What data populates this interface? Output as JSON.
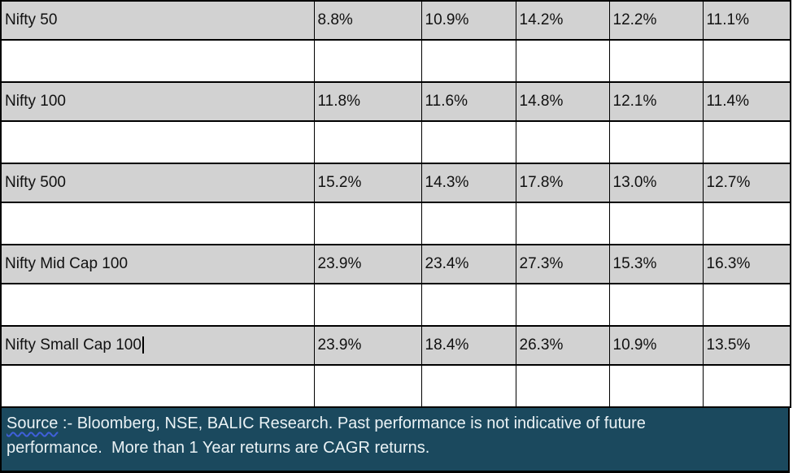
{
  "colors": {
    "row_fill": "#d2d2d2",
    "border": "#000000",
    "footer_background": "#1b495e",
    "footer_text": "#eaf2f5",
    "squiggle_underline": "#3f5fd9"
  },
  "table": {
    "rows": [
      {
        "label": "Nifty 50",
        "values": [
          "8.8%",
          "10.9%",
          "14.2%",
          "12.2%",
          "11.1%"
        ]
      },
      {
        "label": "Nifty 100",
        "values": [
          "11.8%",
          "11.6%",
          "14.8%",
          "12.1%",
          "11.4%"
        ]
      },
      {
        "label": "Nifty 500",
        "values": [
          "15.2%",
          "14.3%",
          "17.8%",
          "13.0%",
          "12.7%"
        ]
      },
      {
        "label": "Nifty Mid Cap 100",
        "values": [
          "23.9%",
          "23.4%",
          "27.3%",
          "15.3%",
          "16.3%"
        ]
      },
      {
        "label": "Nifty Small Cap 100",
        "values": [
          "23.9%",
          "18.4%",
          "26.3%",
          "10.9%",
          "13.5%"
        ],
        "caret": true
      }
    ]
  },
  "footer": {
    "source_word": "Source",
    "line1_rest": " :- Bloomberg, NSE, BALIC Research. Past performance is not indicative of future",
    "line2": "performance.  More than 1 Year returns are CAGR returns."
  }
}
